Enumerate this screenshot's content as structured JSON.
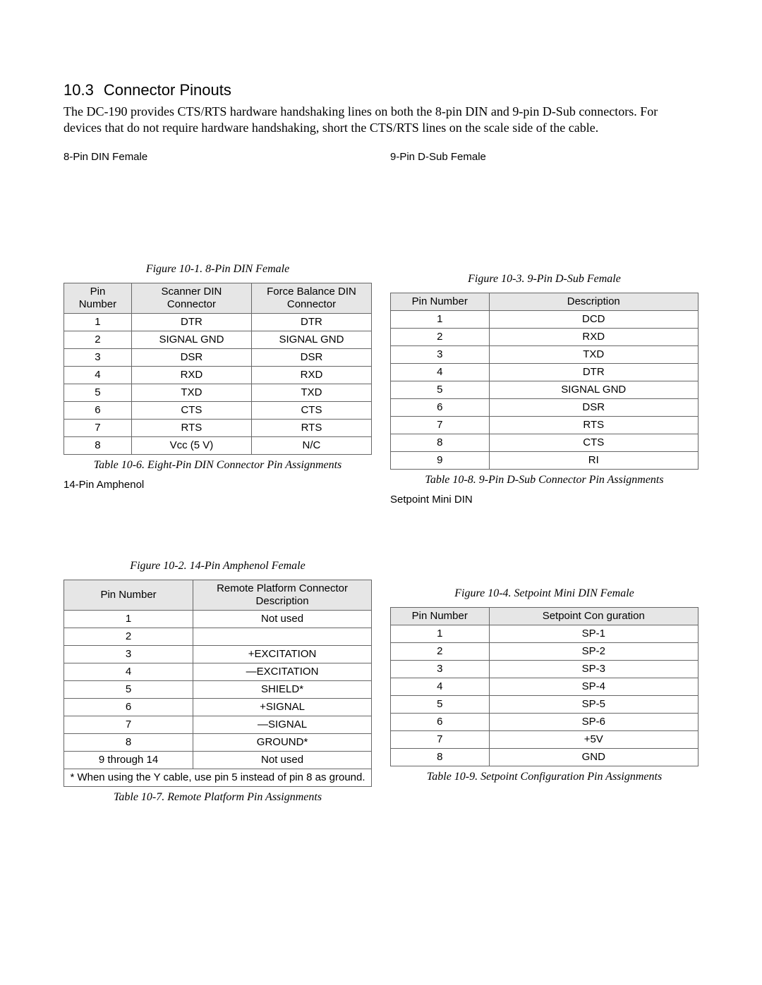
{
  "heading_number": "10.3",
  "heading_title": "Connector Pinouts",
  "body": "The DC-190 provides CTS/RTS hardware handshaking lines on both the 8-pin DIN and 9-pin D-Sub connectors. For devices that do not require hardware handshaking, short the CTS/RTS lines on the scale side of the cable.",
  "left": {
    "conn1_label": "8-Pin DIN Female",
    "fig1_caption": "Figure 10-1.  8-Pin DIN Female",
    "table1": {
      "headers": [
        "Pin\nNumber",
        "Scanner DIN\nConnector",
        "Force Balance DIN\nConnector"
      ],
      "col_widths": [
        "22%",
        "39%",
        "39%"
      ],
      "rows": [
        [
          "1",
          "DTR",
          "DTR"
        ],
        [
          "2",
          "SIGNAL GND",
          "SIGNAL GND"
        ],
        [
          "3",
          "DSR",
          "DSR"
        ],
        [
          "4",
          "RXD",
          "RXD"
        ],
        [
          "5",
          "TXD",
          "TXD"
        ],
        [
          "6",
          "CTS",
          "CTS"
        ],
        [
          "7",
          "RTS",
          "RTS"
        ],
        [
          "8",
          "Vcc (5 V)",
          "N/C"
        ]
      ],
      "caption": "Table 10-6. Eight-Pin DIN Connector Pin Assignments"
    },
    "conn2_label": "14-Pin Amphenol",
    "fig2_caption": "Figure 10-2.  14-Pin Amphenol Female",
    "table2": {
      "headers": [
        "Pin Number",
        "Remote Platform Connector\nDescription"
      ],
      "col_widths": [
        "42%",
        "58%"
      ],
      "rows": [
        [
          "1",
          "Not used"
        ],
        [
          "2",
          ""
        ],
        [
          "3",
          "+EXCITATION"
        ],
        [
          "4",
          "—EXCITATION"
        ],
        [
          "5",
          "SHIELD*"
        ],
        [
          "6",
          "+SIGNAL"
        ],
        [
          "7",
          "—SIGNAL"
        ],
        [
          "8",
          "GROUND*"
        ],
        [
          "9 through 14",
          "Not used"
        ]
      ],
      "footnote": "* When using the Y cable, use pin 5 instead of pin 8 as ground.",
      "caption": "Table 10-7. Remote Platform Pin Assignments"
    }
  },
  "right": {
    "conn1_label": "9-Pin D-Sub Female",
    "fig1_caption": "Figure 10-3.  9-Pin D-Sub Female",
    "table1": {
      "headers": [
        "Pin Number",
        "Description"
      ],
      "col_widths": [
        "32%",
        "68%"
      ],
      "rows": [
        [
          "1",
          "DCD"
        ],
        [
          "2",
          "RXD"
        ],
        [
          "3",
          "TXD"
        ],
        [
          "4",
          "DTR"
        ],
        [
          "5",
          "SIGNAL GND"
        ],
        [
          "6",
          "DSR"
        ],
        [
          "7",
          "RTS"
        ],
        [
          "8",
          "CTS"
        ],
        [
          "9",
          "RI"
        ]
      ],
      "caption": "Table 10-8. 9-Pin D-Sub Connector Pin Assignments"
    },
    "conn2_label": "Setpoint Mini DIN",
    "fig2_caption": "Figure 10-4.  Setpoint Mini DIN Female",
    "table2": {
      "headers": [
        "Pin Number",
        "Setpoint Con guration"
      ],
      "col_widths": [
        "32%",
        "68%"
      ],
      "rows": [
        [
          "1",
          "SP-1"
        ],
        [
          "2",
          "SP-2"
        ],
        [
          "3",
          "SP-3"
        ],
        [
          "4",
          "SP-4"
        ],
        [
          "5",
          "SP-5"
        ],
        [
          "6",
          "SP-6"
        ],
        [
          "7",
          "+5V"
        ],
        [
          "8",
          "GND"
        ]
      ],
      "caption": "Table 10-9. Setpoint Configuration Pin Assignments"
    }
  },
  "style": {
    "page_bg": "#ffffff",
    "text_color": "#000000",
    "header_bg": "#e6e6e6",
    "border_color": "#666666",
    "body_font": "Times New Roman",
    "ui_font": "Arial",
    "heading_fontsize": 22,
    "body_fontsize": 18,
    "table_fontsize": 15,
    "caption_fontsize": 16
  }
}
